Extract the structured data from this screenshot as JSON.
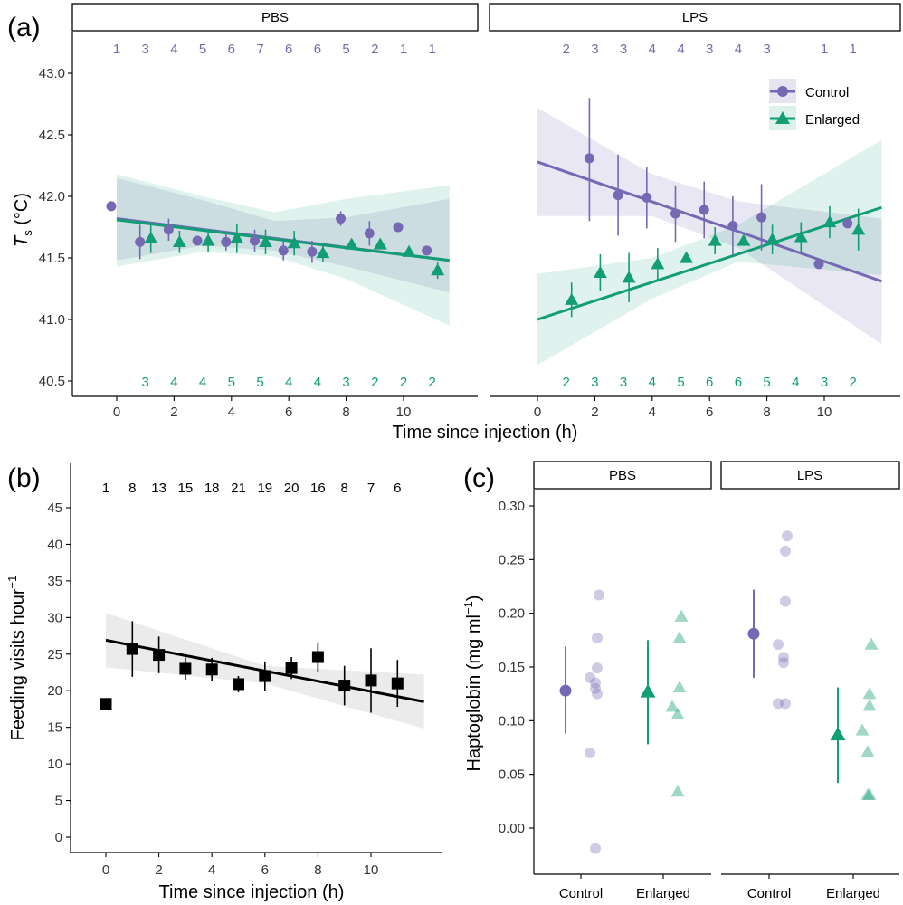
{
  "colors": {
    "control": "#7569b4",
    "enlarged": "#119e74",
    "black": "#000000",
    "ribbon_grey": "#ebebeb"
  },
  "chart_data": [
    {
      "id": "a",
      "type": "scatter",
      "panel_label": "(a)",
      "xlabel": "Time since injection (h)",
      "ylabel_main": "T",
      "ylabel_sub": "s",
      "ylabel_unit": "(°C)",
      "xlim": [
        -1.2,
        12
      ],
      "ylim": [
        40.4,
        43.2
      ],
      "xticks": [
        0,
        2,
        4,
        6,
        8,
        10
      ],
      "yticks": [
        "40.5",
        "41.0",
        "41.5",
        "42.0",
        "42.5",
        "43.0"
      ],
      "grid": false,
      "legend": {
        "position": "top-right",
        "items": [
          {
            "label": "Control",
            "shape": "circle",
            "color": "#7569b4"
          },
          {
            "label": "Enlarged",
            "shape": "triangle",
            "color": "#119e74"
          }
        ]
      },
      "facets": [
        {
          "strip": "PBS",
          "control_n": [
            "1",
            "3",
            "4",
            "5",
            "6",
            "7",
            "6",
            "6",
            "5",
            "2",
            "1",
            "1"
          ],
          "enlarged_n": [
            "3",
            "4",
            "4",
            "5",
            "5",
            "4",
            "4",
            "3",
            "2",
            "2",
            "2"
          ],
          "control": [
            {
              "x": 0,
              "y": 41.92
            },
            {
              "x": 1,
              "y": 41.63,
              "lo": 41.49,
              "hi": 41.77
            },
            {
              "x": 2,
              "y": 41.73,
              "lo": 41.64,
              "hi": 41.82
            },
            {
              "x": 3,
              "y": 41.64
            },
            {
              "x": 4,
              "y": 41.63,
              "lo": 41.56,
              "hi": 41.7
            },
            {
              "x": 5,
              "y": 41.64,
              "lo": 41.55,
              "hi": 41.73
            },
            {
              "x": 6,
              "y": 41.56,
              "lo": 41.48,
              "hi": 41.64
            },
            {
              "x": 7,
              "y": 41.55,
              "lo": 41.46,
              "hi": 41.64
            },
            {
              "x": 8,
              "y": 41.82,
              "lo": 41.76,
              "hi": 41.88
            },
            {
              "x": 9,
              "y": 41.7,
              "lo": 41.6,
              "hi": 41.8
            },
            {
              "x": 10,
              "y": 41.75
            },
            {
              "x": 11,
              "y": 41.56
            }
          ],
          "enlarged": [
            {
              "x": 1,
              "y": 41.66,
              "lo": 41.54,
              "hi": 41.78
            },
            {
              "x": 2,
              "y": 41.63,
              "lo": 41.54,
              "hi": 41.72
            },
            {
              "x": 3,
              "y": 41.64,
              "lo": 41.55,
              "hi": 41.73
            },
            {
              "x": 4,
              "y": 41.66,
              "lo": 41.54,
              "hi": 41.78
            },
            {
              "x": 5,
              "y": 41.63,
              "lo": 41.53,
              "hi": 41.73
            },
            {
              "x": 6,
              "y": 41.62,
              "lo": 41.52,
              "hi": 41.72
            },
            {
              "x": 7,
              "y": 41.54,
              "lo": 41.47,
              "hi": 41.61
            },
            {
              "x": 8,
              "y": 41.61
            },
            {
              "x": 9,
              "y": 41.61
            },
            {
              "x": 10,
              "y": 41.55
            },
            {
              "x": 11,
              "y": 41.4,
              "lo": 41.33,
              "hi": 41.47
            }
          ],
          "fit_control": {
            "x": [
              0,
              11.6
            ],
            "y": [
              41.82,
              41.48
            ]
          },
          "fit_enlarged": {
            "x": [
              0,
              11.6
            ],
            "y": [
              41.81,
              41.48
            ]
          },
          "band_control": [
            {
              "x": 0,
              "lo": 41.48,
              "hi": 42.15
            },
            {
              "x": 3,
              "lo": 41.6,
              "hi": 41.97
            },
            {
              "x": 5.5,
              "lo": 41.56,
              "hi": 41.8
            },
            {
              "x": 8,
              "lo": 41.43,
              "hi": 41.83
            },
            {
              "x": 11.6,
              "lo": 41.22,
              "hi": 41.98
            }
          ],
          "band_enlarged": [
            {
              "x": 0,
              "lo": 41.43,
              "hi": 42.18
            },
            {
              "x": 3,
              "lo": 41.55,
              "hi": 42.0
            },
            {
              "x": 5.5,
              "lo": 41.51,
              "hi": 41.87
            },
            {
              "x": 8,
              "lo": 41.33,
              "hi": 41.98
            },
            {
              "x": 11.6,
              "lo": 40.95,
              "hi": 42.09
            }
          ]
        },
        {
          "strip": "LPS",
          "control_n": [
            "2",
            "3",
            "3",
            "4",
            "4",
            "3",
            "4",
            "3",
            "",
            "1",
            "1"
          ],
          "enlarged_n": [
            "2",
            "3",
            "3",
            "4",
            "5",
            "6",
            "6",
            "5",
            "4",
            "3",
            "2"
          ],
          "control": [
            {
              "x": 2,
              "y": 42.31,
              "lo": 41.8,
              "hi": 42.8
            },
            {
              "x": 3,
              "y": 42.01,
              "lo": 41.68,
              "hi": 42.34
            },
            {
              "x": 4,
              "y": 41.99,
              "lo": 41.74,
              "hi": 42.24
            },
            {
              "x": 5,
              "y": 41.86,
              "lo": 41.63,
              "hi": 42.09
            },
            {
              "x": 6,
              "y": 41.89,
              "lo": 41.66,
              "hi": 42.12
            },
            {
              "x": 7,
              "y": 41.76,
              "lo": 41.52,
              "hi": 42.0
            },
            {
              "x": 8,
              "y": 41.83,
              "lo": 41.56,
              "hi": 42.1
            },
            {
              "x": 10,
              "y": 41.45
            },
            {
              "x": 11,
              "y": 41.78
            }
          ],
          "enlarged": [
            {
              "x": 1,
              "y": 41.16,
              "lo": 41.02,
              "hi": 41.3
            },
            {
              "x": 2,
              "y": 41.38,
              "lo": 41.23,
              "hi": 41.53
            },
            {
              "x": 3,
              "y": 41.34,
              "lo": 41.14,
              "hi": 41.54
            },
            {
              "x": 4,
              "y": 41.45,
              "lo": 41.32,
              "hi": 41.58
            },
            {
              "x": 5,
              "y": 41.5
            },
            {
              "x": 6,
              "y": 41.64,
              "lo": 41.53,
              "hi": 41.75
            },
            {
              "x": 7,
              "y": 41.64
            },
            {
              "x": 8,
              "y": 41.65,
              "lo": 41.53,
              "hi": 41.77
            },
            {
              "x": 9,
              "y": 41.67,
              "lo": 41.55,
              "hi": 41.79
            },
            {
              "x": 10,
              "y": 41.79,
              "lo": 41.66,
              "hi": 41.92
            },
            {
              "x": 11,
              "y": 41.73,
              "lo": 41.56,
              "hi": 41.9
            }
          ],
          "fit_control": {
            "x": [
              0,
              12
            ],
            "y": [
              42.28,
              41.31
            ]
          },
          "fit_enlarged": {
            "x": [
              0,
              12
            ],
            "y": [
              41.0,
              41.91
            ]
          },
          "band_control": [
            {
              "x": 0,
              "lo": 41.84,
              "hi": 42.72
            },
            {
              "x": 4,
              "lo": 41.84,
              "hi": 42.18
            },
            {
              "x": 7,
              "lo": 41.58,
              "hi": 41.96
            },
            {
              "x": 12,
              "lo": 40.8,
              "hi": 41.82
            }
          ],
          "band_enlarged": [
            {
              "x": 0,
              "lo": 40.63,
              "hi": 41.37
            },
            {
              "x": 4,
              "lo": 41.17,
              "hi": 41.5
            },
            {
              "x": 7,
              "lo": 41.47,
              "hi": 41.77
            },
            {
              "x": 12,
              "lo": 41.36,
              "hi": 42.46
            }
          ]
        }
      ]
    },
    {
      "id": "b",
      "type": "scatter",
      "panel_label": "(b)",
      "xlabel": "Time since injection (h)",
      "ylabel_main": "Feeding visits hour",
      "ylabel_sup": "−1",
      "xlim": [
        -1.5,
        12.5
      ],
      "ylim": [
        -1.5,
        48
      ],
      "xticks": [
        0,
        2,
        4,
        6,
        8,
        10
      ],
      "yticks": [
        "0",
        "5",
        "10",
        "15",
        "20",
        "25",
        "30",
        "35",
        "40",
        "45"
      ],
      "grid": false,
      "n_labels": [
        "1",
        "8",
        "13",
        "15",
        "18",
        "21",
        "19",
        "20",
        "16",
        "8",
        "7",
        "6"
      ],
      "points": [
        {
          "x": 0,
          "y": 18.2
        },
        {
          "x": 1,
          "y": 25.7,
          "lo": 21.9,
          "hi": 29.5
        },
        {
          "x": 2,
          "y": 24.9,
          "lo": 22.4,
          "hi": 27.4
        },
        {
          "x": 3,
          "y": 23.0,
          "lo": 21.5,
          "hi": 24.5
        },
        {
          "x": 4,
          "y": 22.9,
          "lo": 21.3,
          "hi": 24.5
        },
        {
          "x": 5,
          "y": 20.9,
          "lo": 19.8,
          "hi": 22.0
        },
        {
          "x": 6,
          "y": 22.0,
          "lo": 20.0,
          "hi": 24.0
        },
        {
          "x": 7,
          "y": 23.1,
          "lo": 21.6,
          "hi": 24.6
        },
        {
          "x": 8,
          "y": 24.6,
          "lo": 22.6,
          "hi": 26.6
        },
        {
          "x": 9,
          "y": 20.7,
          "lo": 18.0,
          "hi": 23.4
        },
        {
          "x": 10,
          "y": 21.4,
          "lo": 17.0,
          "hi": 25.8
        },
        {
          "x": 11,
          "y": 21.0,
          "lo": 17.8,
          "hi": 24.2
        }
      ],
      "fit": {
        "x": [
          0,
          12
        ],
        "y": [
          26.9,
          18.5
        ]
      },
      "band": [
        {
          "x": 0,
          "lo": 23.2,
          "hi": 30.6
        },
        {
          "x": 6,
          "lo": 21.0,
          "hi": 23.4
        },
        {
          "x": 12,
          "lo": 14.8,
          "hi": 22.2
        }
      ]
    },
    {
      "id": "c",
      "type": "scatter",
      "panel_label": "(c)",
      "ylabel_main": "Haptoglobin (mg ml",
      "ylabel_sup": "−1",
      "ylabel_close": ")",
      "ylim": [
        -0.035,
        0.315
      ],
      "yticks": [
        "0.00",
        "0.05",
        "0.10",
        "0.15",
        "0.20",
        "0.25",
        "0.30"
      ],
      "grid": false,
      "facets": [
        {
          "strip": "PBS",
          "groups": [
            {
              "label": "Control",
              "mean": 0.128,
              "lo": 0.088,
              "hi": 0.169,
              "raw": [
                0.217,
                0.177,
                0.149,
                0.14,
                0.135,
                0.13,
                0.125,
                0.07,
                -0.019
              ]
            },
            {
              "label": "Enlarged",
              "mean": 0.127,
              "lo": 0.078,
              "hi": 0.175,
              "raw": [
                0.197,
                0.177,
                0.131,
                0.113,
                0.106,
                0.034
              ]
            }
          ]
        },
        {
          "strip": "LPS",
          "groups": [
            {
              "label": "Control",
              "mean": 0.181,
              "lo": 0.14,
              "hi": 0.222,
              "raw": [
                0.272,
                0.258,
                0.211,
                0.171,
                0.159,
                0.154,
                0.116,
                0.116
              ]
            },
            {
              "label": "Enlarged",
              "mean": 0.087,
              "lo": 0.042,
              "hi": 0.131,
              "raw": [
                0.171,
                0.125,
                0.114,
                0.091,
                0.071,
                0.031,
                0.031
              ]
            }
          ]
        }
      ]
    }
  ]
}
